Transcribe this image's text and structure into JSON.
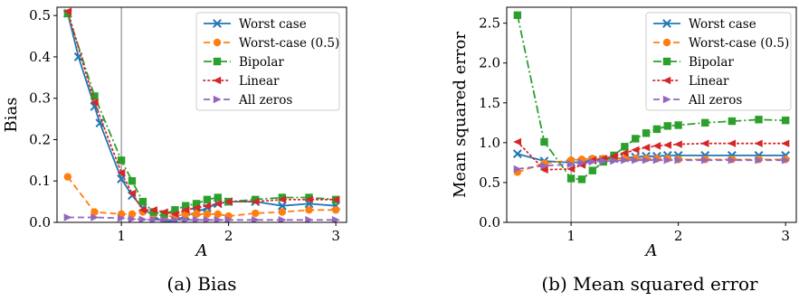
{
  "chart_data": [
    {
      "type": "line",
      "caption": "(a) Bias",
      "xlabel": "A",
      "ylabel": "Bias",
      "xlim": [
        0.4,
        3.1
      ],
      "ylim": [
        0,
        0.52
      ],
      "xticks": [
        1,
        2,
        3
      ],
      "yticks": [
        0.0,
        0.1,
        0.2,
        0.3,
        0.4,
        0.5
      ],
      "vline_x": 1,
      "legend": "top-right",
      "grid": false,
      "series": [
        {
          "name": "Worst case",
          "color": "#1f77b4",
          "marker": "x",
          "dash": "solid",
          "x": [
            0.5,
            0.6,
            0.75,
            0.8,
            1.0,
            1.1,
            1.2,
            1.3,
            1.4,
            1.5,
            1.6,
            1.7,
            1.8,
            1.9,
            2.0,
            2.25,
            2.5,
            2.75,
            3.0
          ],
          "y": [
            0.505,
            0.4,
            0.28,
            0.24,
            0.105,
            0.065,
            0.035,
            0.015,
            0.0,
            0.005,
            0.015,
            0.025,
            0.035,
            0.045,
            0.05,
            0.05,
            0.04,
            0.045,
            0.04
          ]
        },
        {
          "name": "Worst-case (0.5)",
          "color": "#ff7f0e",
          "marker": "circle",
          "dash": "dashed",
          "x": [
            0.5,
            0.75,
            1.0,
            1.1,
            1.2,
            1.3,
            1.4,
            1.5,
            1.6,
            1.7,
            1.8,
            1.9,
            2.0,
            2.25,
            2.5,
            2.75,
            3.0
          ],
          "y": [
            0.11,
            0.025,
            0.02,
            0.02,
            0.025,
            0.02,
            0.015,
            0.015,
            0.02,
            0.02,
            0.02,
            0.02,
            0.015,
            0.022,
            0.025,
            0.03,
            0.03
          ]
        },
        {
          "name": "Bipolar",
          "color": "#2ca02c",
          "marker": "square",
          "dash": "dashdot",
          "x": [
            0.5,
            0.75,
            1.0,
            1.1,
            1.2,
            1.3,
            1.4,
            1.5,
            1.6,
            1.7,
            1.8,
            1.9,
            2.0,
            2.25,
            2.5,
            2.75,
            3.0
          ],
          "y": [
            0.505,
            0.305,
            0.15,
            0.1,
            0.05,
            0.025,
            0.02,
            0.03,
            0.04,
            0.045,
            0.055,
            0.06,
            0.05,
            0.055,
            0.06,
            0.06,
            0.055
          ]
        },
        {
          "name": "Linear",
          "color": "#d62728",
          "marker": "triangle-left",
          "dash": "dotted",
          "x": [
            0.5,
            0.75,
            1.0,
            1.1,
            1.2,
            1.3,
            1.4,
            1.5,
            1.6,
            1.7,
            1.8,
            1.9,
            2.0,
            2.25,
            2.5,
            2.75,
            3.0
          ],
          "y": [
            0.51,
            0.29,
            0.12,
            0.07,
            0.03,
            0.03,
            0.025,
            0.02,
            0.03,
            0.035,
            0.04,
            0.045,
            0.05,
            0.05,
            0.055,
            0.055,
            0.055
          ]
        },
        {
          "name": "All zeros",
          "color": "#9467bd",
          "marker": "triangle-right",
          "dash": "dashed",
          "x": [
            0.5,
            0.75,
            1.0,
            1.1,
            1.2,
            1.3,
            1.4,
            1.5,
            1.6,
            1.7,
            1.8,
            1.9,
            2.0,
            2.25,
            2.5,
            2.75,
            3.0
          ],
          "y": [
            0.012,
            0.012,
            0.01,
            0.008,
            0.007,
            0.006,
            0.006,
            0.006,
            0.006,
            0.006,
            0.006,
            0.006,
            0.006,
            0.006,
            0.006,
            0.006,
            0.006
          ]
        }
      ]
    },
    {
      "type": "line",
      "caption": "(b) Mean squared error",
      "xlabel": "A",
      "ylabel": "Mean squared error",
      "xlim": [
        0.4,
        3.1
      ],
      "ylim": [
        0,
        2.7
      ],
      "xticks": [
        1,
        2,
        3
      ],
      "yticks": [
        0.0,
        0.5,
        1.0,
        1.5,
        2.0,
        2.5
      ],
      "vline_x": 1,
      "legend": "top-right",
      "grid": false,
      "series": [
        {
          "name": "Worst case",
          "color": "#1f77b4",
          "marker": "x",
          "dash": "solid",
          "x": [
            0.5,
            0.75,
            1.0,
            1.1,
            1.2,
            1.3,
            1.4,
            1.5,
            1.6,
            1.7,
            1.8,
            1.9,
            2.0,
            2.25,
            2.5,
            2.75,
            3.0
          ],
          "y": [
            0.86,
            0.77,
            0.75,
            0.76,
            0.78,
            0.79,
            0.8,
            0.81,
            0.82,
            0.83,
            0.83,
            0.84,
            0.84,
            0.84,
            0.84,
            0.84,
            0.84
          ]
        },
        {
          "name": "Worst-case (0.5)",
          "color": "#ff7f0e",
          "marker": "circle",
          "dash": "dashed",
          "x": [
            0.5,
            0.75,
            1.0,
            1.1,
            1.2,
            1.3,
            1.4,
            1.5,
            1.6,
            1.7,
            1.8,
            1.9,
            2.0,
            2.25,
            2.5,
            2.75,
            3.0
          ],
          "y": [
            0.63,
            0.74,
            0.78,
            0.79,
            0.8,
            0.8,
            0.8,
            0.8,
            0.8,
            0.8,
            0.8,
            0.8,
            0.79,
            0.79,
            0.79,
            0.79,
            0.79
          ]
        },
        {
          "name": "Bipolar",
          "color": "#2ca02c",
          "marker": "square",
          "dash": "dashdot",
          "x": [
            0.5,
            0.75,
            1.0,
            1.1,
            1.2,
            1.3,
            1.4,
            1.5,
            1.6,
            1.7,
            1.8,
            1.9,
            2.0,
            2.25,
            2.5,
            2.75,
            3.0
          ],
          "y": [
            2.6,
            1.01,
            0.55,
            0.54,
            0.65,
            0.76,
            0.84,
            0.95,
            1.05,
            1.12,
            1.17,
            1.21,
            1.22,
            1.25,
            1.27,
            1.29,
            1.28
          ]
        },
        {
          "name": "Linear",
          "color": "#d62728",
          "marker": "triangle-left",
          "dash": "dotted",
          "x": [
            0.5,
            0.75,
            1.0,
            1.1,
            1.2,
            1.3,
            1.4,
            1.5,
            1.6,
            1.7,
            1.8,
            1.9,
            2.0,
            2.25,
            2.5,
            2.75,
            3.0
          ],
          "y": [
            1.01,
            0.66,
            0.67,
            0.72,
            0.78,
            0.8,
            0.83,
            0.87,
            0.91,
            0.94,
            0.96,
            0.97,
            0.98,
            0.99,
            0.99,
            0.99,
            0.99
          ]
        },
        {
          "name": "All zeros",
          "color": "#9467bd",
          "marker": "triangle-right",
          "dash": "dashed",
          "x": [
            0.5,
            0.75,
            1.0,
            1.1,
            1.2,
            1.3,
            1.4,
            1.5,
            1.6,
            1.7,
            1.8,
            1.9,
            2.0,
            2.25,
            2.5,
            2.75,
            3.0
          ],
          "y": [
            0.67,
            0.71,
            0.73,
            0.75,
            0.76,
            0.77,
            0.77,
            0.78,
            0.78,
            0.78,
            0.78,
            0.78,
            0.78,
            0.78,
            0.78,
            0.78,
            0.78
          ]
        }
      ]
    }
  ]
}
